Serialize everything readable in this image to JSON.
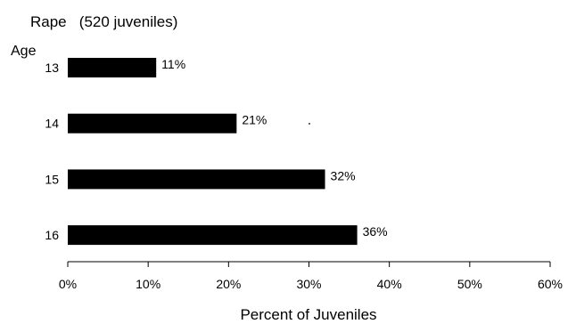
{
  "chart_data": {
    "type": "bar",
    "orientation": "horizontal",
    "title": "Rape   (520 juveniles)",
    "ylabel": "Age",
    "xlabel": "Percent of Juveniles",
    "categories": [
      "13",
      "14",
      "15",
      "16"
    ],
    "values": [
      11,
      21,
      32,
      36
    ],
    "value_labels": [
      "11%",
      "21%",
      "32%",
      "36%"
    ],
    "xlim": [
      0,
      60
    ],
    "xticks": [
      0,
      10,
      20,
      30,
      40,
      50,
      60
    ],
    "xtick_labels": [
      "0%",
      "10%",
      "20%",
      "30%",
      "40%",
      "50%",
      "60%"
    ],
    "grid": false,
    "bar_color": "#000000"
  }
}
